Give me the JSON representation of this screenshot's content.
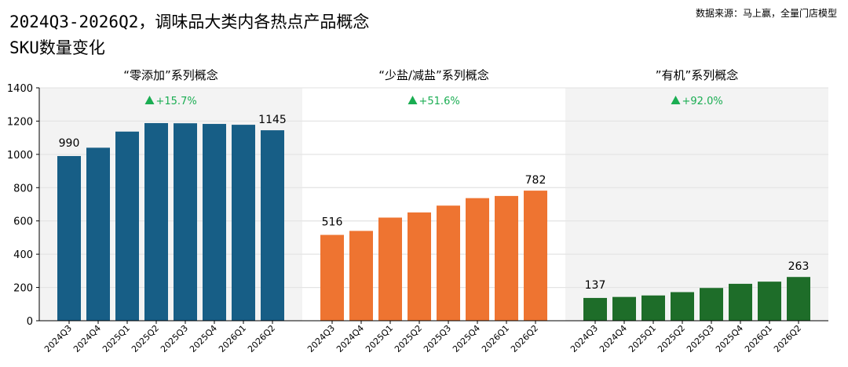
{
  "title_line1": "2024Q3-2026Q2，调味品大类内各热点产品概念",
  "title_line2": "SKU数量变化",
  "source": "数据来源：马上赢，全量门店模型",
  "chart_data": {
    "type": "bar",
    "categories": [
      "2024Q3",
      "2024Q4",
      "2025Q1",
      "2025Q2",
      "2025Q3",
      "2025Q4",
      "2026Q1",
      "2026Q2"
    ],
    "ylim": [
      0,
      1400
    ],
    "yticks": [
      0,
      200,
      400,
      600,
      800,
      1000,
      1200,
      1400
    ],
    "grid": true,
    "panels": [
      {
        "name": "“零添加”系列概念",
        "color": "#175e86",
        "values": [
          990,
          1040,
          1137,
          1188,
          1187,
          1183,
          1178,
          1145
        ],
        "labels": {
          "first": "990",
          "last": "1145"
        },
        "change": "+15.7%"
      },
      {
        "name": "“少盐/减盐”系列概念",
        "color": "#ee7431",
        "values": [
          516,
          540,
          620,
          651,
          692,
          737,
          750,
          782
        ],
        "labels": {
          "first": "516",
          "last": "782"
        },
        "change": "+51.6%"
      },
      {
        "name": "”有机”系列概念",
        "color": "#1e6d29",
        "values": [
          137,
          143,
          152,
          172,
          197,
          222,
          235,
          263
        ],
        "labels": {
          "first": "137",
          "last": "263"
        },
        "change": "+92.0%"
      }
    ]
  },
  "colors": {
    "up_arrow": "#1aad52",
    "panel_bg": "#f3f3f3",
    "grid": "#e2e2e2"
  }
}
